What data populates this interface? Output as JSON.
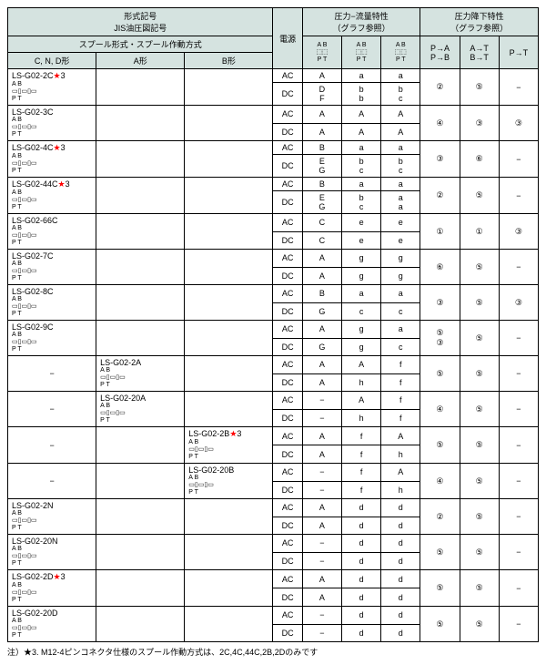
{
  "header": {
    "model_jis": "形式記号\nJIS油圧図記号",
    "spool": "スプール形式・スプール作動方式",
    "power": "電源",
    "pressure_flow": "圧力−流量特性\n（グラフ参照）",
    "pressure_drop": "圧力降下特性\n（グラフ参照）",
    "cnd": "C, N, D形",
    "a": "A形",
    "b": "B形",
    "pa": "P→A\nP→B",
    "at": "A→T\nB→T",
    "pt": "P→T",
    "sym1": "A B\n⬚⬚\nP T",
    "sym2": "A B\n⬚⬚\nP T",
    "sym3": "A B\n⬚⬚\nP T"
  },
  "rows": [
    {
      "c": "LS-G02-2C★3",
      "a": "",
      "b": "",
      "l": [
        [
          "AC",
          "A",
          "a",
          "a"
        ],
        [
          "DC",
          "D\nF",
          "b\nb",
          "b\nc"
        ]
      ],
      "pa": "②",
      "at": "⑤",
      "pt": "−"
    },
    {
      "c": "LS-G02-3C",
      "a": "",
      "b": "",
      "l": [
        [
          "AC",
          "A",
          "A",
          "A"
        ],
        [
          "DC",
          "A",
          "A",
          "A"
        ]
      ],
      "pa": "④",
      "at": "③",
      "pt": "③"
    },
    {
      "c": "LS-G02-4C★3",
      "a": "",
      "b": "",
      "l": [
        [
          "AC",
          "B",
          "a",
          "a"
        ],
        [
          "DC",
          "E\nG",
          "b\nc",
          "b\nc"
        ]
      ],
      "pa": "③",
      "at": "⑥",
      "pt": "−"
    },
    {
      "c": "LS-G02-44C★3",
      "a": "",
      "b": "",
      "l": [
        [
          "AC",
          "B",
          "a",
          "a"
        ],
        [
          "DC",
          "E\nG",
          "b\nc",
          "a\na"
        ]
      ],
      "pa": "②",
      "at": "⑤",
      "pt": "−"
    },
    {
      "c": "LS-G02-66C",
      "a": "",
      "b": "",
      "l": [
        [
          "AC",
          "C",
          "e",
          "e"
        ],
        [
          "DC",
          "C",
          "e",
          "e"
        ]
      ],
      "pa": "①",
      "at": "①",
      "pt": "③"
    },
    {
      "c": "LS-G02-7C",
      "a": "",
      "b": "",
      "l": [
        [
          "AC",
          "A",
          "g",
          "g"
        ],
        [
          "DC",
          "A",
          "g",
          "g"
        ]
      ],
      "pa": "⑥",
      "at": "⑤",
      "pt": "−"
    },
    {
      "c": "LS-G02-8C",
      "a": "",
      "b": "",
      "l": [
        [
          "AC",
          "B",
          "a",
          "a"
        ],
        [
          "DC",
          "G",
          "c",
          "c"
        ]
      ],
      "pa": "③",
      "at": "⑤",
      "pt": "③"
    },
    {
      "c": "LS-G02-9C",
      "a": "",
      "b": "",
      "l": [
        [
          "AC",
          "A",
          "g",
          "a"
        ],
        [
          "DC",
          "G",
          "g",
          "c"
        ]
      ],
      "pa": "⑤\n③",
      "at": "⑤",
      "pt": "−"
    },
    {
      "c": "−",
      "a": "LS-G02-2A",
      "b": "",
      "l": [
        [
          "AC",
          "A",
          "A",
          "f"
        ],
        [
          "DC",
          "A",
          "h",
          "f"
        ]
      ],
      "pa": "⑤",
      "at": "⑤",
      "pt": "−"
    },
    {
      "c": "−",
      "a": "LS-G02-20A",
      "b": "",
      "l": [
        [
          "AC",
          "−",
          "A",
          "f"
        ],
        [
          "DC",
          "−",
          "h",
          "f"
        ]
      ],
      "pa": "④",
      "at": "⑤",
      "pt": "−"
    },
    {
      "c": "−",
      "a": "",
      "b": "LS-G02-2B★3",
      "l": [
        [
          "AC",
          "A",
          "f",
          "A"
        ],
        [
          "DC",
          "A",
          "f",
          "h"
        ]
      ],
      "pa": "⑤",
      "at": "⑤",
      "pt": "−"
    },
    {
      "c": "−",
      "a": "",
      "b": "LS-G02-20B",
      "l": [
        [
          "AC",
          "−",
          "f",
          "A"
        ],
        [
          "DC",
          "−",
          "f",
          "h"
        ]
      ],
      "pa": "④",
      "at": "⑤",
      "pt": "−"
    },
    {
      "c": "LS-G02-2N",
      "a": "",
      "b": "",
      "l": [
        [
          "AC",
          "A",
          "d",
          "d"
        ],
        [
          "DC",
          "A",
          "d",
          "d"
        ]
      ],
      "pa": "②",
      "at": "⑤",
      "pt": "−"
    },
    {
      "c": "LS-G02-20N",
      "a": "",
      "b": "",
      "l": [
        [
          "AC",
          "−",
          "d",
          "d"
        ],
        [
          "DC",
          "−",
          "d",
          "d"
        ]
      ],
      "pa": "⑤",
      "at": "⑤",
      "pt": "−"
    },
    {
      "c": "LS-G02-2D★3",
      "a": "",
      "b": "",
      "l": [
        [
          "AC",
          "A",
          "d",
          "d"
        ],
        [
          "DC",
          "A",
          "d",
          "d"
        ]
      ],
      "pa": "⑤",
      "at": "⑤",
      "pt": "−"
    },
    {
      "c": "LS-G02-20D",
      "a": "",
      "b": "",
      "l": [
        [
          "AC",
          "−",
          "d",
          "d"
        ],
        [
          "DC",
          "−",
          "d",
          "d"
        ]
      ],
      "pa": "⑤",
      "at": "⑤",
      "pt": "−"
    }
  ],
  "note": "注）★3. M12-4ピンコネクタ仕様のスプール作動方式は、2C,4C,44C,2B,2Dのみです"
}
